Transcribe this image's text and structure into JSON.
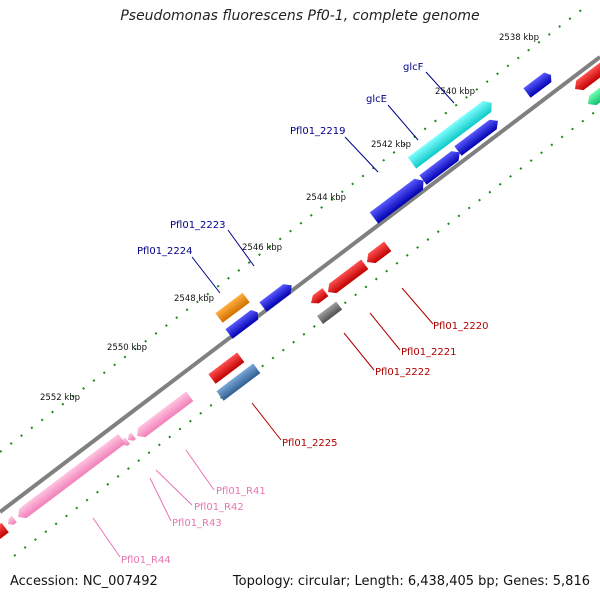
{
  "title": "Pseudomonas fluorescens Pf0-1, complete genome",
  "footer": {
    "accession": "Accession: NC_007492",
    "summary": "Topology: circular; Length: 6,438,405 bp; Genes: 5,816"
  },
  "ticks": [
    {
      "label": "2538 kbp"
    },
    {
      "label": "2540 kbp"
    },
    {
      "label": "2542 kbp"
    },
    {
      "label": "2544 kbp"
    },
    {
      "label": "2546 kbp"
    },
    {
      "label": "2548 kbp"
    },
    {
      "label": "2550 kbp"
    },
    {
      "label": "2552 kbp"
    }
  ],
  "gene_labels": [
    {
      "id": "glcF",
      "label": "glcF",
      "color": "#00008b"
    },
    {
      "id": "glcE",
      "label": "glcE",
      "color": "#00008b"
    },
    {
      "id": "pfl01-2219",
      "label": "Pfl01_2219",
      "color": "#00008b"
    },
    {
      "id": "pfl01-2223",
      "label": "Pfl01_2223",
      "color": "#00008b"
    },
    {
      "id": "pfl01-2224",
      "label": "Pfl01_2224",
      "color": "#00008b"
    },
    {
      "id": "pfl01-2220",
      "label": "Pfl01_2220",
      "color": "#b00000"
    },
    {
      "id": "pfl01-2221",
      "label": "Pfl01_2221",
      "color": "#b00000"
    },
    {
      "id": "pfl01-2222",
      "label": "Pfl01_2222",
      "color": "#b00000"
    },
    {
      "id": "pfl01-2225",
      "label": "Pfl01_2225",
      "color": "#b00000"
    },
    {
      "id": "pfl01-r41",
      "label": "Pfl01_R41",
      "color": "#e874b4"
    },
    {
      "id": "pfl01-r42",
      "label": "Pfl01_R42",
      "color": "#e874b4"
    },
    {
      "id": "pfl01-r43",
      "label": "Pfl01_R43",
      "color": "#e874b4"
    },
    {
      "id": "pfl01-r44",
      "label": "Pfl01_R44",
      "color": "#e874b4"
    }
  ],
  "colors": {
    "backbone": "#808080",
    "forward_gene": "#0000dd",
    "reverse_gene": "#ee0000",
    "glcE": "#22dddd",
    "orange_gene": "#f08a00",
    "steelblue_gene": "#4a80b4",
    "gray_gene": "#707070",
    "rna_gene": "#ff99cc",
    "tick": "#1a8a1a"
  }
}
